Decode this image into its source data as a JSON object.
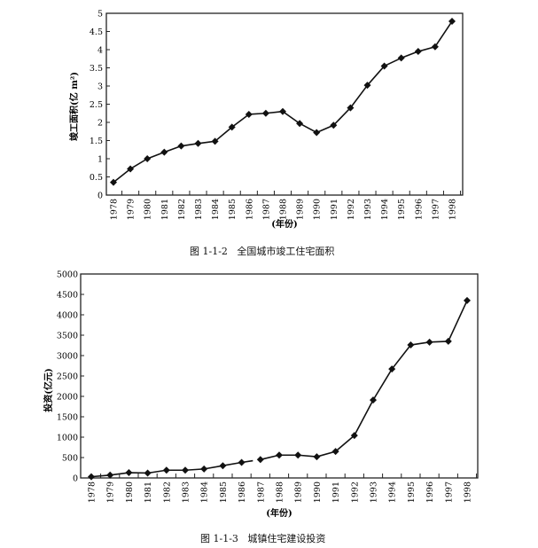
{
  "chart_data": [
    {
      "type": "line",
      "caption": "图 1-1-2   全国城市竣工住宅面积",
      "xlabel": "(年份)",
      "ylabel": "竣工面积(亿 m²)",
      "ylim": [
        0,
        5
      ],
      "yticks": [
        "0",
        "0.5",
        "1",
        "1.5",
        "2",
        "2.5",
        "3",
        "3.5",
        "4",
        "4.5",
        "5"
      ],
      "categories": [
        "1978",
        "1979",
        "1980",
        "1981",
        "1982",
        "1983",
        "1984",
        "1985",
        "1986",
        "1987",
        "1988",
        "1989",
        "1990",
        "1991",
        "1992",
        "1993",
        "1994",
        "1995",
        "1996",
        "1997",
        "1998"
      ],
      "values": [
        0.35,
        0.72,
        1.0,
        1.18,
        1.35,
        1.42,
        1.48,
        1.87,
        2.22,
        2.25,
        2.3,
        1.97,
        1.72,
        1.92,
        2.4,
        3.02,
        3.55,
        3.77,
        3.95,
        4.08,
        4.78
      ],
      "marker": "diamond",
      "grid": false,
      "color": "#111111"
    },
    {
      "type": "line",
      "caption": "图 1-1-3   城镇住宅建设投资",
      "xlabel": "(年份)",
      "ylabel": "投资(亿元)",
      "ylim": [
        0,
        5000
      ],
      "yticks": [
        "0",
        "500",
        "1000",
        "1500",
        "2000",
        "2500",
        "3000",
        "3500",
        "4000",
        "4500",
        "5000"
      ],
      "categories": [
        "1978",
        "1979",
        "1980",
        "1981",
        "1982",
        "1983",
        "1984",
        "1985",
        "1986",
        "1987",
        "1988",
        "1989",
        "1990",
        "1991",
        "1992",
        "1993",
        "1994",
        "1995",
        "1996",
        "1997",
        "1998"
      ],
      "values": [
        30,
        70,
        130,
        120,
        190,
        190,
        220,
        300,
        380,
        450,
        560,
        560,
        520,
        650,
        1040,
        1910,
        2670,
        3260,
        3330,
        3350,
        4350
      ],
      "marker": "diamond",
      "grid": false,
      "color": "#111111"
    }
  ]
}
